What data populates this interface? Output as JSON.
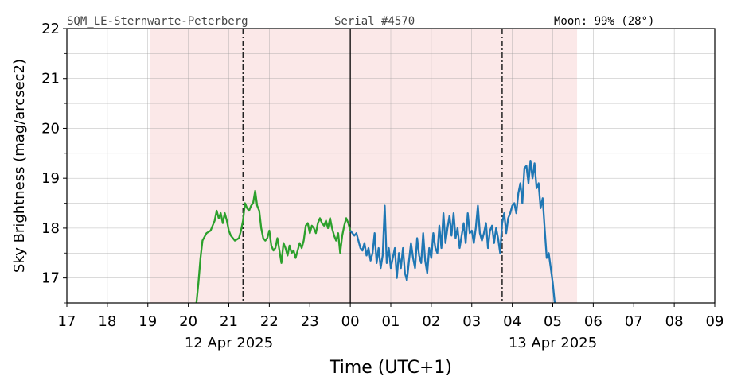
{
  "header": {
    "station": "SQM_LE-Sternwarte-Peterberg",
    "serial": "Serial #4570",
    "moon": "Moon: 99% (28°)"
  },
  "chart_data": {
    "type": "line",
    "title": "",
    "xlabel": "Time (UTC+1)",
    "ylabel": "Sky Brightness (mag/arcsec2)",
    "x_unit": "hour (12 Apr 2025 17:00 → 13 Apr 2025 09:00, UTC+1)",
    "xlim": [
      17,
      33
    ],
    "ylim": [
      16.5,
      22
    ],
    "y_ticks": [
      "17",
      "18",
      "19",
      "20",
      "21",
      "22"
    ],
    "x_ticks": [
      "17",
      "18",
      "19",
      "20",
      "21",
      "22",
      "23",
      "00",
      "01",
      "02",
      "03",
      "04",
      "05",
      "06",
      "07",
      "08",
      "09"
    ],
    "date_labels": [
      {
        "text": "12 Apr 2025",
        "x": 21
      },
      {
        "text": "13 Apr 2025",
        "x": 29
      }
    ],
    "grid": true,
    "night_band": {
      "x_start": 19.05,
      "x_end": 29.6,
      "color": "#f8d8d8"
    },
    "midnight_line": 24,
    "dashdot_lines": [
      21.35,
      27.75
    ],
    "series": [
      {
        "color": "#2ca02c",
        "x": [
          20.2,
          20.25,
          20.3,
          20.35,
          20.45,
          20.55,
          20.65,
          20.7,
          20.75,
          20.8,
          20.85,
          20.9,
          20.95,
          21.0,
          21.05,
          21.1,
          21.15,
          21.25,
          21.3,
          21.35,
          21.4,
          21.45,
          21.5,
          21.55,
          21.6,
          21.65,
          21.7,
          21.75,
          21.8,
          21.85,
          21.9,
          21.95,
          22.0,
          22.05,
          22.1,
          22.15,
          22.2,
          22.25,
          22.3,
          22.35,
          22.4,
          22.45,
          22.5,
          22.55,
          22.6,
          22.65,
          22.7,
          22.75,
          22.8,
          22.85,
          22.9,
          22.95,
          23.0,
          23.05,
          23.1,
          23.15,
          23.2,
          23.25,
          23.3,
          23.35,
          23.4,
          23.45,
          23.5,
          23.55,
          23.6,
          23.65,
          23.7,
          23.75,
          23.8,
          23.85,
          23.9,
          23.95,
          24.0
        ],
        "y": [
          16.5,
          16.9,
          17.4,
          17.75,
          17.9,
          17.95,
          18.15,
          18.35,
          18.2,
          18.3,
          18.1,
          18.3,
          18.15,
          17.95,
          17.85,
          17.8,
          17.75,
          17.8,
          17.95,
          18.15,
          18.5,
          18.4,
          18.35,
          18.45,
          18.5,
          18.75,
          18.45,
          18.35,
          18.0,
          17.8,
          17.75,
          17.8,
          17.95,
          17.65,
          17.55,
          17.6,
          17.8,
          17.55,
          17.3,
          17.7,
          17.6,
          17.45,
          17.65,
          17.5,
          17.55,
          17.4,
          17.55,
          17.7,
          17.6,
          17.75,
          18.05,
          18.1,
          17.9,
          18.05,
          18.0,
          17.9,
          18.1,
          18.2,
          18.1,
          18.05,
          18.15,
          18.0,
          18.2,
          18.0,
          17.85,
          17.75,
          17.9,
          17.5,
          17.85,
          18.05,
          18.2,
          18.1,
          17.95
        ]
      },
      {
        "color": "#1f77b4",
        "x": [
          24.0,
          24.05,
          24.1,
          24.15,
          24.2,
          24.25,
          24.3,
          24.35,
          24.4,
          24.45,
          24.5,
          24.55,
          24.6,
          24.65,
          24.7,
          24.75,
          24.8,
          24.85,
          24.9,
          24.95,
          25.0,
          25.05,
          25.1,
          25.15,
          25.2,
          25.25,
          25.3,
          25.35,
          25.4,
          25.45,
          25.5,
          25.55,
          25.6,
          25.65,
          25.7,
          25.75,
          25.8,
          25.85,
          25.9,
          25.95,
          26.0,
          26.05,
          26.1,
          26.15,
          26.2,
          26.25,
          26.3,
          26.35,
          26.4,
          26.45,
          26.5,
          26.55,
          26.6,
          26.65,
          26.7,
          26.75,
          26.8,
          26.85,
          26.9,
          26.95,
          27.0,
          27.05,
          27.1,
          27.15,
          27.2,
          27.25,
          27.3,
          27.35,
          27.4,
          27.45,
          27.5,
          27.55,
          27.6,
          27.65,
          27.7,
          27.75,
          27.8,
          27.85,
          27.9,
          27.95,
          28.0,
          28.05,
          28.1,
          28.15,
          28.2,
          28.25,
          28.3,
          28.35,
          28.4,
          28.45,
          28.5,
          28.55,
          28.6,
          28.65,
          28.7,
          28.75,
          28.8,
          28.85,
          28.9,
          28.95,
          29.0,
          29.05
        ],
        "y": [
          17.95,
          17.9,
          17.85,
          17.9,
          17.75,
          17.6,
          17.55,
          17.7,
          17.45,
          17.6,
          17.35,
          17.5,
          17.9,
          17.3,
          17.6,
          17.2,
          17.45,
          18.45,
          17.3,
          17.6,
          17.2,
          17.4,
          17.6,
          17.0,
          17.5,
          17.2,
          17.6,
          17.1,
          16.95,
          17.35,
          17.7,
          17.4,
          17.2,
          17.8,
          17.45,
          17.3,
          17.9,
          17.35,
          17.1,
          17.6,
          17.4,
          17.9,
          17.6,
          17.5,
          18.05,
          17.6,
          18.3,
          17.7,
          18.0,
          18.25,
          17.85,
          18.3,
          17.8,
          18.0,
          17.6,
          17.85,
          18.1,
          17.7,
          18.3,
          17.9,
          17.95,
          17.7,
          18.0,
          18.45,
          17.9,
          17.75,
          17.9,
          18.1,
          17.6,
          17.95,
          18.05,
          17.7,
          18.0,
          17.8,
          17.5,
          18.1,
          18.3,
          17.9,
          18.2,
          18.3,
          18.45,
          18.5,
          18.3,
          18.7,
          18.9,
          18.5,
          19.2,
          19.25,
          18.9,
          19.35,
          19.0,
          19.3,
          18.8,
          18.9,
          18.4,
          18.6,
          18.0,
          17.4,
          17.5,
          17.2,
          16.9,
          16.5
        ]
      }
    ]
  }
}
